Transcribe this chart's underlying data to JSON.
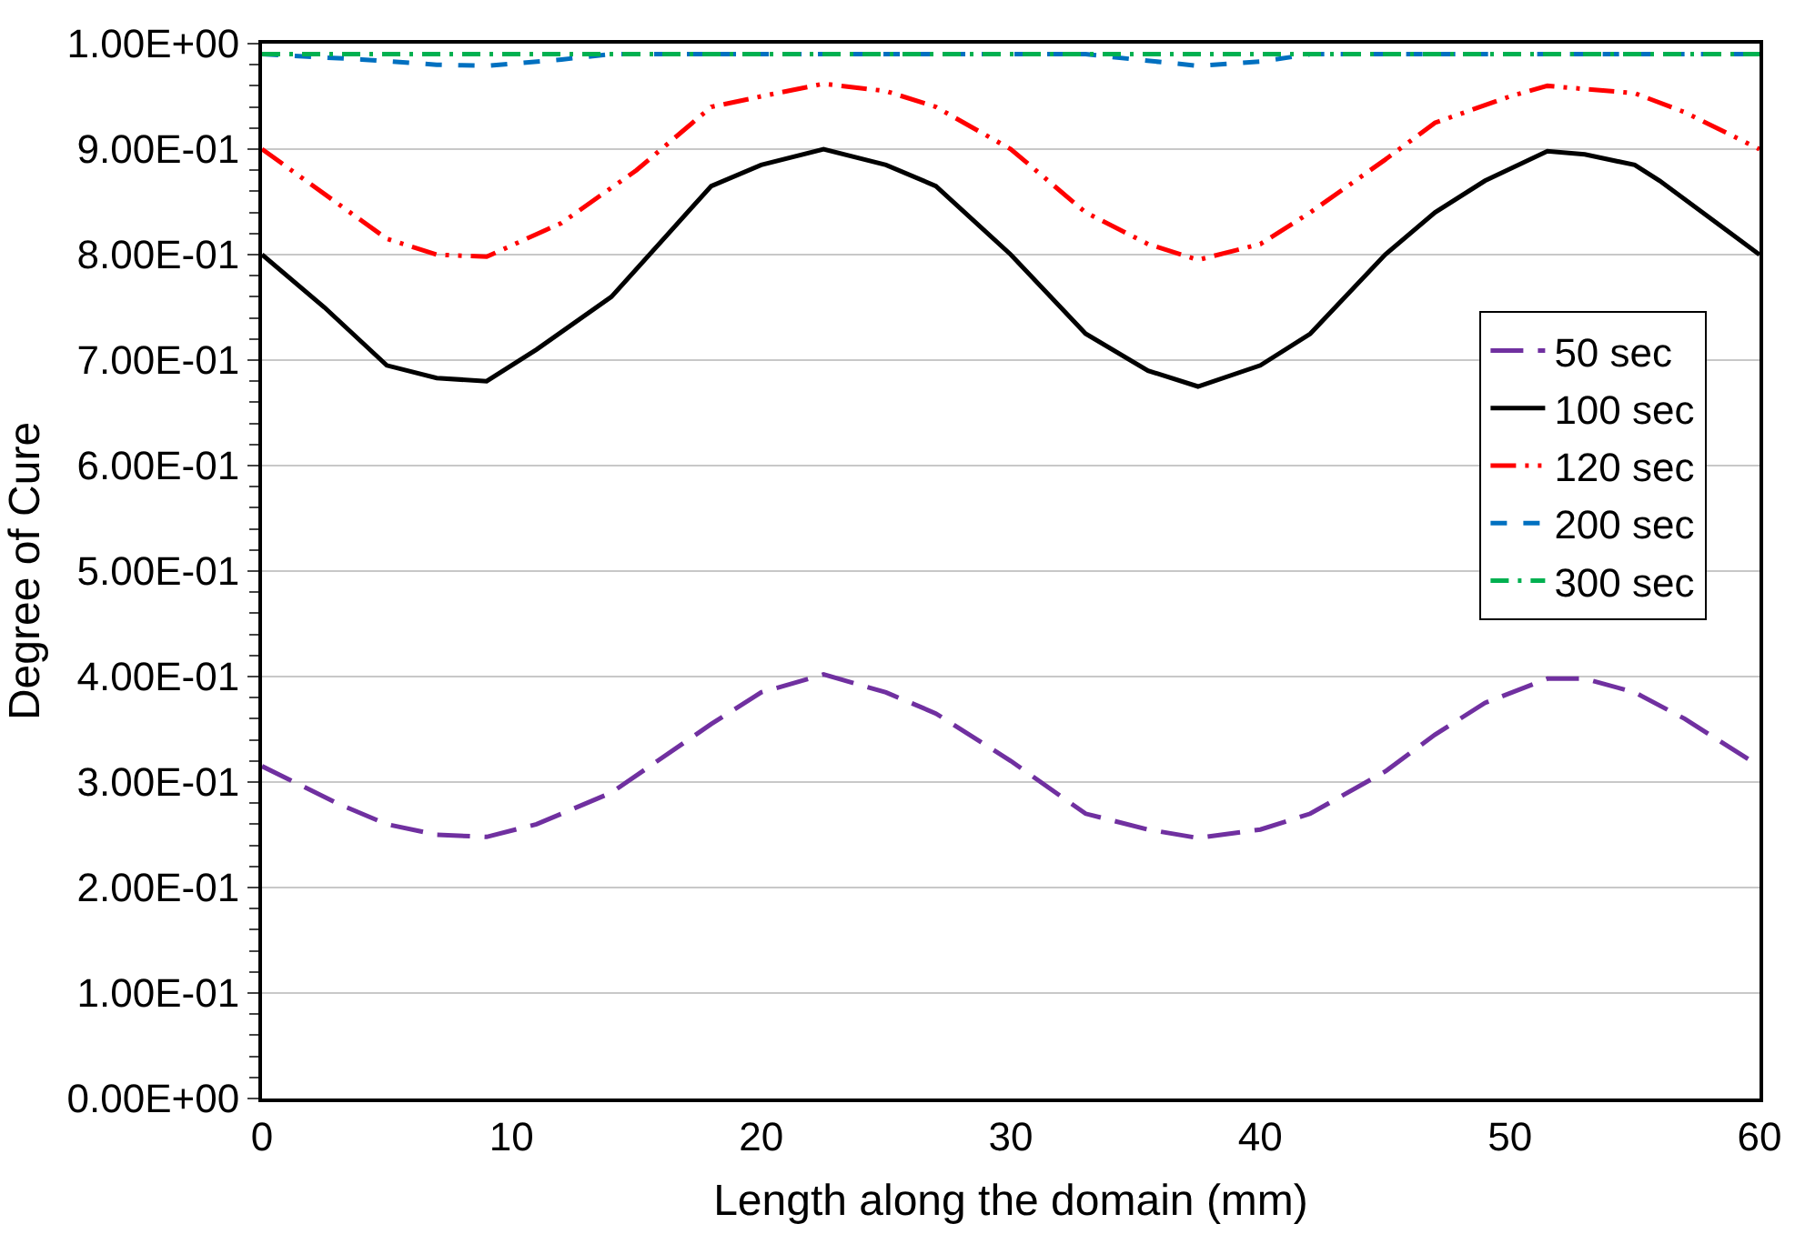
{
  "chart_data": {
    "type": "line",
    "xlabel": "Length along the domain (mm)",
    "ylabel": "Degree of Cure",
    "xlim": [
      0,
      60
    ],
    "xticks": [
      0,
      10,
      20,
      30,
      40,
      50,
      60
    ],
    "ylim": [
      0,
      1
    ],
    "yticks": [
      {
        "value": 0,
        "label": "0.00E+00"
      },
      {
        "value": 0.1,
        "label": "1.00E-01"
      },
      {
        "value": 0.2,
        "label": "2.00E-01"
      },
      {
        "value": 0.3,
        "label": "3.00E-01"
      },
      {
        "value": 0.4,
        "label": "4.00E-01"
      },
      {
        "value": 0.5,
        "label": "5.00E-01"
      },
      {
        "value": 0.6,
        "label": "6.00E-01"
      },
      {
        "value": 0.7,
        "label": "7.00E-01"
      },
      {
        "value": 0.8,
        "label": "8.00E-01"
      },
      {
        "value": 0.9,
        "label": "9.00E-01"
      },
      {
        "value": 1,
        "label": "1.00E+00"
      }
    ],
    "grid": "y",
    "legend": "right",
    "marker": "none",
    "series": [
      {
        "name": "50 sec",
        "color": "#7030a0",
        "line_style": "longdash",
        "x": [
          0,
          3,
          5,
          7,
          9,
          11,
          14,
          18,
          20,
          22.5,
          25,
          27,
          30,
          33,
          35.5,
          37.5,
          40,
          42,
          45,
          47,
          49,
          51.5,
          53,
          55,
          57,
          60
        ],
        "values": [
          0.315,
          0.28,
          0.26,
          0.25,
          0.248,
          0.26,
          0.29,
          0.355,
          0.385,
          0.402,
          0.385,
          0.365,
          0.32,
          0.27,
          0.255,
          0.247,
          0.255,
          0.27,
          0.31,
          0.345,
          0.375,
          0.398,
          0.398,
          0.385,
          0.36,
          0.315
        ]
      },
      {
        "name": "100 sec",
        "color": "#000000",
        "line_style": "solid",
        "x": [
          0,
          2.5,
          5,
          7,
          9,
          11,
          14,
          18,
          20,
          22.5,
          25,
          27,
          30,
          33,
          35.5,
          37.5,
          40,
          42,
          45,
          47,
          49,
          51.5,
          53,
          55,
          56,
          60
        ],
        "values": [
          0.8,
          0.75,
          0.695,
          0.683,
          0.68,
          0.71,
          0.76,
          0.865,
          0.885,
          0.9,
          0.885,
          0.865,
          0.8,
          0.725,
          0.69,
          0.675,
          0.695,
          0.725,
          0.8,
          0.84,
          0.87,
          0.898,
          0.895,
          0.885,
          0.87,
          0.8
        ]
      },
      {
        "name": "120 sec",
        "color": "#ff0000",
        "line_style": "dashdotdot",
        "x": [
          0,
          5,
          7,
          9,
          12,
          15,
          18,
          20,
          22.5,
          25,
          27,
          30,
          33,
          35.5,
          37.5,
          40,
          42,
          45,
          47,
          50,
          51.5,
          55,
          57,
          60
        ],
        "values": [
          0.9,
          0.815,
          0.8,
          0.798,
          0.83,
          0.88,
          0.94,
          0.95,
          0.962,
          0.955,
          0.94,
          0.9,
          0.84,
          0.81,
          0.795,
          0.81,
          0.84,
          0.89,
          0.925,
          0.95,
          0.96,
          0.953,
          0.935,
          0.9
        ]
      },
      {
        "name": "200 sec",
        "color": "#0070c0",
        "line_style": "dashed",
        "x": [
          0,
          4,
          7,
          9,
          12,
          14,
          33,
          35,
          37.5,
          40,
          42,
          60
        ],
        "values": [
          0.99,
          0.985,
          0.98,
          0.979,
          0.985,
          0.99,
          0.99,
          0.985,
          0.979,
          0.983,
          0.99,
          0.99
        ]
      },
      {
        "name": "300 sec",
        "color": "#00b050",
        "line_style": "dashdot",
        "x": [
          0,
          60
        ],
        "values": [
          0.99,
          0.99
        ]
      }
    ]
  }
}
